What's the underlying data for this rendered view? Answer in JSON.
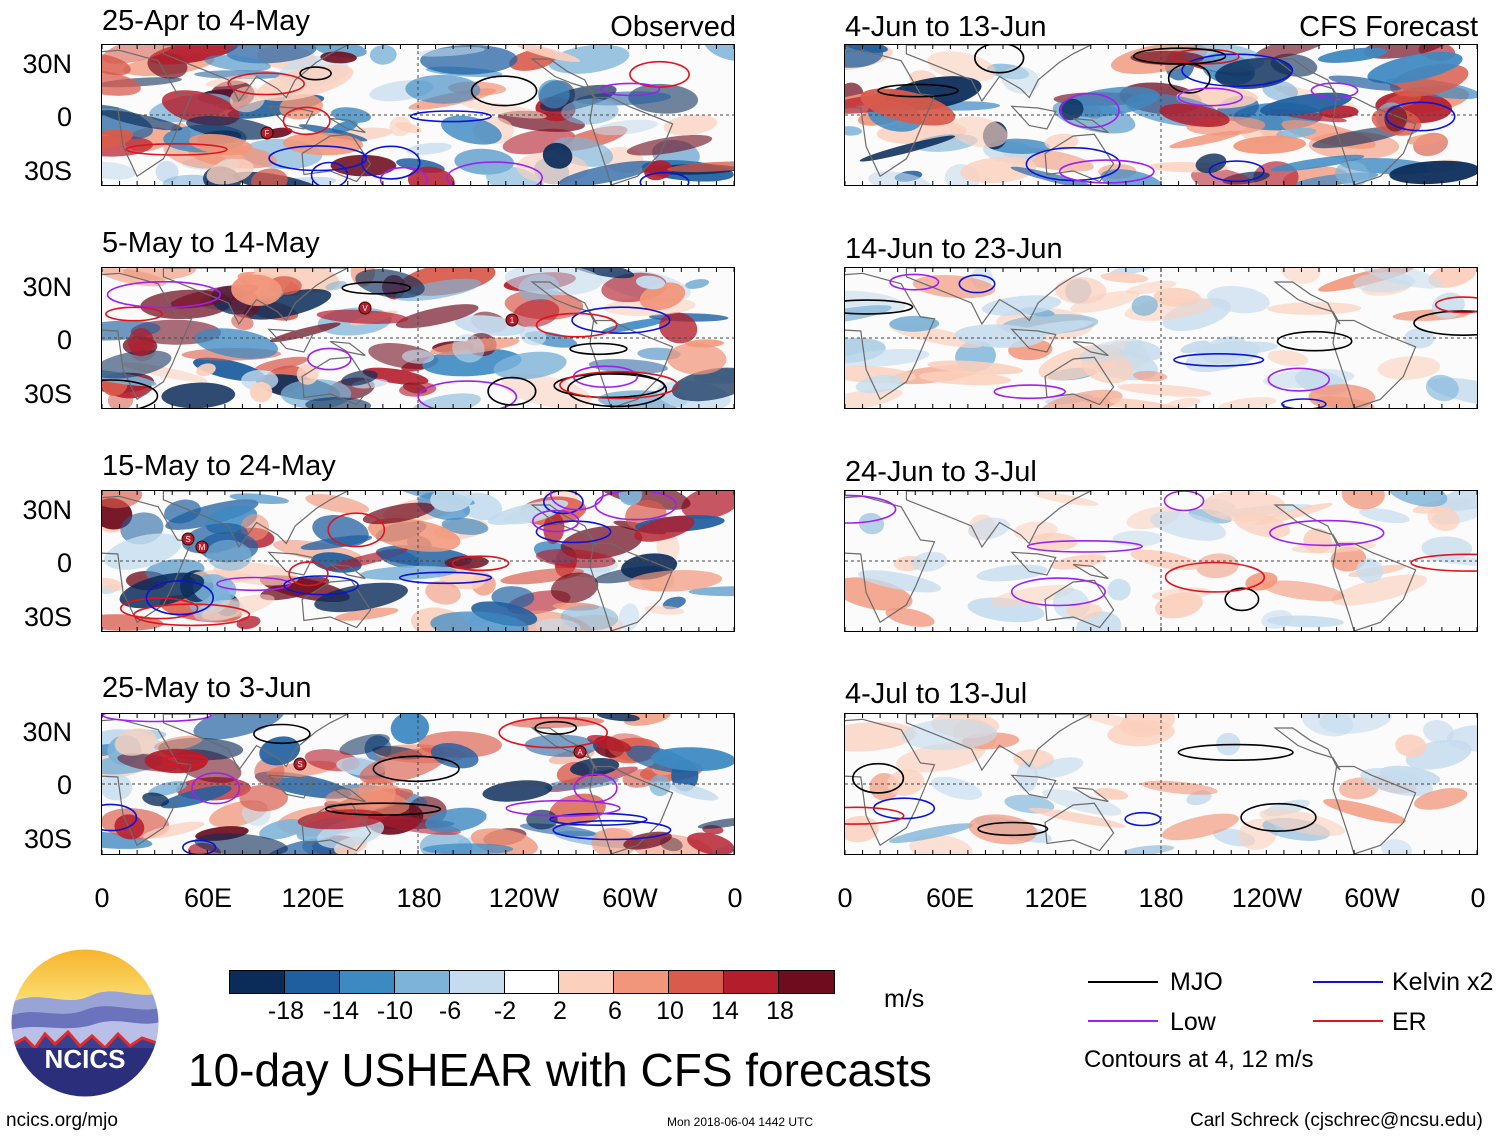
{
  "observed_label": "Observed",
  "forecast_label": "CFS Forecast",
  "observed_panels": [
    {
      "title": "25-Apr to 4-May"
    },
    {
      "title": "5-May to 14-May"
    },
    {
      "title": "15-May to 24-May"
    },
    {
      "title": "25-May to 3-Jun"
    }
  ],
  "forecast_panels": [
    {
      "title": "4-Jun to 13-Jun"
    },
    {
      "title": "14-Jun to 23-Jun"
    },
    {
      "title": "24-Jun to 3-Jul"
    },
    {
      "title": "4-Jul to 13-Jul"
    }
  ],
  "lat_labels": [
    "30N",
    "0",
    "30S"
  ],
  "lon_labels": [
    "0",
    "60E",
    "120E",
    "180",
    "120W",
    "60W",
    "0"
  ],
  "colorbar": {
    "colors": [
      "#0b2c59",
      "#1f5fa0",
      "#3d89c2",
      "#7db3d8",
      "#c5dcee",
      "#ffffff",
      "#fbd0bd",
      "#f1967a",
      "#d95b4b",
      "#b41d2c",
      "#6f0d1f"
    ],
    "ticks": [
      "-18",
      "-14",
      "-10",
      "-6",
      "-2",
      "2",
      "6",
      "10",
      "14",
      "18"
    ],
    "units": "m/s"
  },
  "legend": {
    "items": [
      {
        "label": "MJO",
        "color": "#000000"
      },
      {
        "label": "Kelvin x2",
        "color": "#0a14d8"
      },
      {
        "label": "Low",
        "color": "#a020f0"
      },
      {
        "label": "ER",
        "color": "#e0141e"
      }
    ],
    "note": "Contours at 4, 12 m/s"
  },
  "logo_text": "NCICS",
  "main_title": "10-day USHEAR with CFS forecasts",
  "footer": {
    "left": "ncics.org/mjo",
    "center": "Mon 2018-06-04 1442 UTC",
    "right": "Carl Schreck (cjschrec@ncsu.edu)"
  },
  "storm_markers": [
    {
      "panel": 0,
      "label": "F"
    },
    {
      "panel": 1,
      "label": "V"
    },
    {
      "panel": 1,
      "label": "1"
    },
    {
      "panel": 2,
      "label": "S"
    },
    {
      "panel": 2,
      "label": "M"
    },
    {
      "panel": 3,
      "label": "S"
    },
    {
      "panel": 3,
      "label": "A"
    }
  ]
}
